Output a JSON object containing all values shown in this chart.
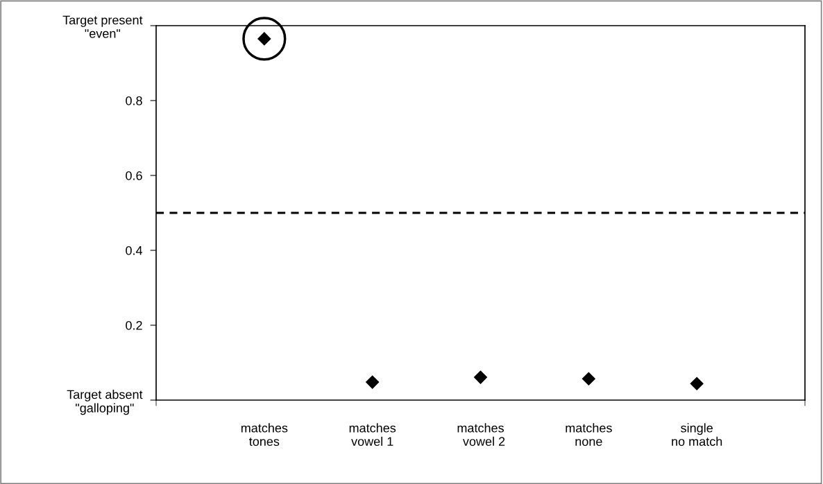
{
  "chart_data": {
    "type": "scatter",
    "categories": [
      "matches\ntones",
      "matches\nvowel 1",
      "matches\n  vowel 2",
      "matches\nnone",
      "single\nno match"
    ],
    "series": [
      {
        "color": "#000000",
        "values": [
          0.965,
          0.048,
          0.061,
          0.057,
          0.044
        ]
      }
    ],
    "marker": "diamond",
    "ylim": [
      0,
      1
    ],
    "yticks": [
      {
        "value": 0,
        "label": "Target absent\n\"galloping\""
      },
      0.2,
      0.4,
      0.6,
      0.8,
      {
        "value": 1,
        "label": "Target present\n\"even\""
      }
    ],
    "ref_lines": [
      {
        "axis": "y",
        "value": 0.5,
        "color": "#000000",
        "line_style": "dashed"
      }
    ]
  }
}
